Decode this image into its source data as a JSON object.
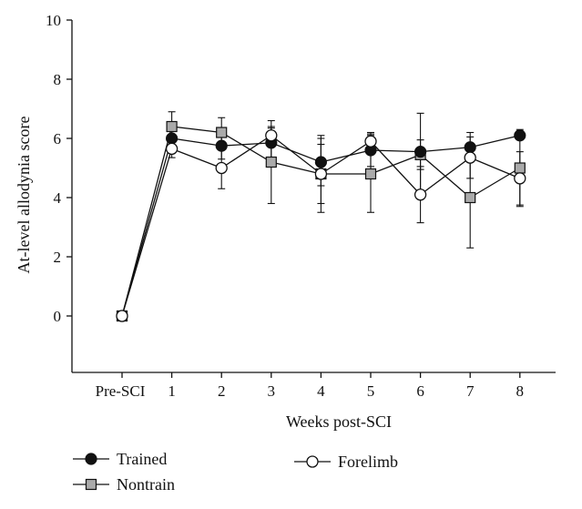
{
  "chart_data": {
    "type": "line",
    "title": "",
    "xlabel": "Weeks post-SCI",
    "ylabel": "At-level allodynia score",
    "categories": [
      "Pre-SCI",
      "1",
      "2",
      "3",
      "4",
      "5",
      "6",
      "7",
      "8"
    ],
    "ylim": [
      -2,
      10
    ],
    "yticks": [
      0,
      2,
      4,
      6,
      8,
      10
    ],
    "grid": false,
    "legend_position": "bottom",
    "series": [
      {
        "name": "Trained",
        "marker": "filled-circle",
        "color": "#111111",
        "values": [
          0,
          6.0,
          5.75,
          5.85,
          5.2,
          5.6,
          5.55,
          5.7,
          6.1
        ],
        "errors": [
          0,
          0.35,
          0.45,
          0.5,
          0.8,
          0.55,
          1.3,
          0.5,
          0.15
        ]
      },
      {
        "name": "Nontrain",
        "marker": "gray-square",
        "color": "#aaaaaa",
        "values": [
          0,
          6.4,
          6.2,
          5.2,
          4.8,
          4.8,
          5.45,
          4.0,
          5.0
        ],
        "errors": [
          0,
          0.5,
          0.5,
          1.4,
          1.3,
          1.3,
          0.5,
          1.7,
          1.3
        ]
      },
      {
        "name": "Forelimb",
        "marker": "open-circle",
        "color": "#ffffff",
        "values": [
          0,
          5.65,
          5.0,
          6.1,
          4.8,
          5.9,
          4.1,
          5.35,
          4.65
        ],
        "errors": [
          0,
          0.3,
          0.7,
          0.3,
          1.0,
          0.3,
          0.95,
          0.7,
          0.9
        ]
      }
    ]
  }
}
